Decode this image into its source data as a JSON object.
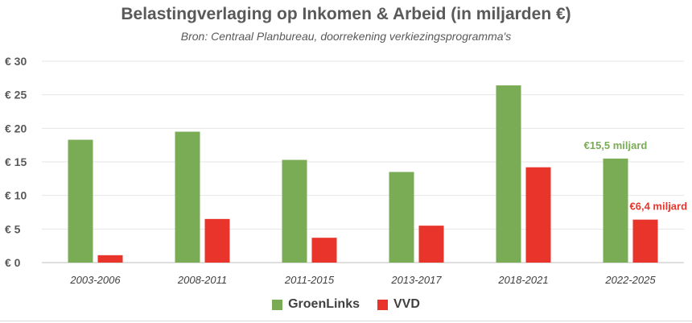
{
  "chart_data": {
    "type": "bar",
    "title": "Belastingverlaging op Inkomen & Arbeid (in miljarden €)",
    "subtitle": "Bron: Centraal Planbureau, doorrekening verkiezingsprogramma's",
    "categories": [
      "2003-2006",
      "2008-2011",
      "2011-2015",
      "2013-2017",
      "2018-2021",
      "2022-2025"
    ],
    "series": [
      {
        "name": "GroenLinks",
        "color": "#7aab55",
        "values": [
          18.3,
          19.5,
          15.3,
          13.5,
          26.4,
          15.5
        ]
      },
      {
        "name": "VVD",
        "color": "#e8342a",
        "values": [
          1.1,
          6.5,
          3.7,
          5.5,
          14.2,
          6.4
        ]
      }
    ],
    "ylim": [
      0,
      30
    ],
    "yticks": [
      0,
      5,
      10,
      15,
      20,
      25,
      30
    ],
    "ytick_labels": [
      "€ 0",
      "€ 5",
      "€ 10",
      "€ 15",
      "€ 20",
      "€ 25",
      "€ 30"
    ],
    "xlabel": "",
    "ylabel": "",
    "grid": true,
    "legend": "bottom",
    "annotations": [
      {
        "text": "€15,5 miljard",
        "series": 0,
        "category": 5,
        "color": "#7aab55"
      },
      {
        "text": "€6,4 miljard",
        "series": 1,
        "category": 5,
        "color": "#e8342a"
      }
    ]
  }
}
